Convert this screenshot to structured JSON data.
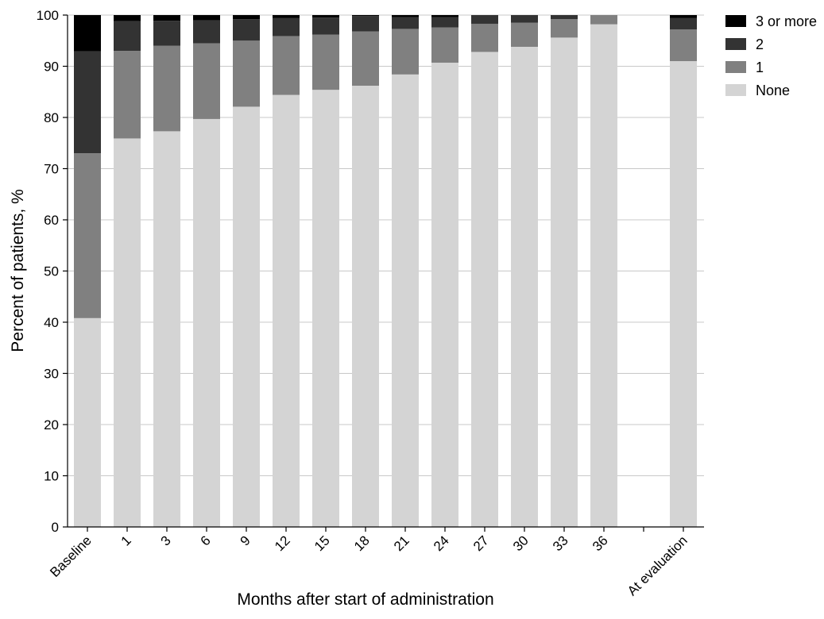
{
  "chart_data": {
    "type": "bar",
    "stacked": true,
    "title": "",
    "xlabel": "Months after start of administration",
    "ylabel": "Percent of patients, %",
    "ylim": [
      0,
      100
    ],
    "yticks": [
      0,
      10,
      20,
      30,
      40,
      50,
      60,
      70,
      80,
      90,
      100
    ],
    "grid": true,
    "legend_position": "top-right",
    "categories": [
      "Baseline",
      "1",
      "3",
      "6",
      "9",
      "12",
      "15",
      "18",
      "21",
      "24",
      "27",
      "30",
      "33",
      "36",
      "",
      "At evaluation"
    ],
    "series": [
      {
        "name": "None",
        "color": "#d4d4d4",
        "values": [
          40.8,
          75.9,
          77.3,
          79.7,
          82.1,
          84.4,
          85.4,
          86.2,
          88.4,
          90.7,
          92.8,
          93.8,
          95.6,
          98.2,
          null,
          91.0
        ]
      },
      {
        "name": "1",
        "color": "#808080",
        "values": [
          32.2,
          17.1,
          16.7,
          14.8,
          12.9,
          11.5,
          10.8,
          10.6,
          8.9,
          6.9,
          5.5,
          4.7,
          3.6,
          1.8,
          null,
          6.2
        ]
      },
      {
        "name": "2",
        "color": "#333333",
        "values": [
          19.9,
          5.8,
          4.9,
          4.5,
          4.2,
          3.5,
          3.3,
          3.0,
          2.3,
          2.0,
          1.7,
          1.5,
          0.8,
          0.0,
          null,
          2.2
        ]
      },
      {
        "name": "3 or more",
        "color": "#000000",
        "values": [
          7.1,
          1.2,
          1.1,
          1.0,
          0.8,
          0.6,
          0.5,
          0.2,
          0.4,
          0.4,
          0.0,
          0.0,
          0.0,
          0.0,
          null,
          0.6
        ]
      }
    ],
    "legend_order": [
      "3 or more",
      "2",
      "1",
      "None"
    ]
  }
}
